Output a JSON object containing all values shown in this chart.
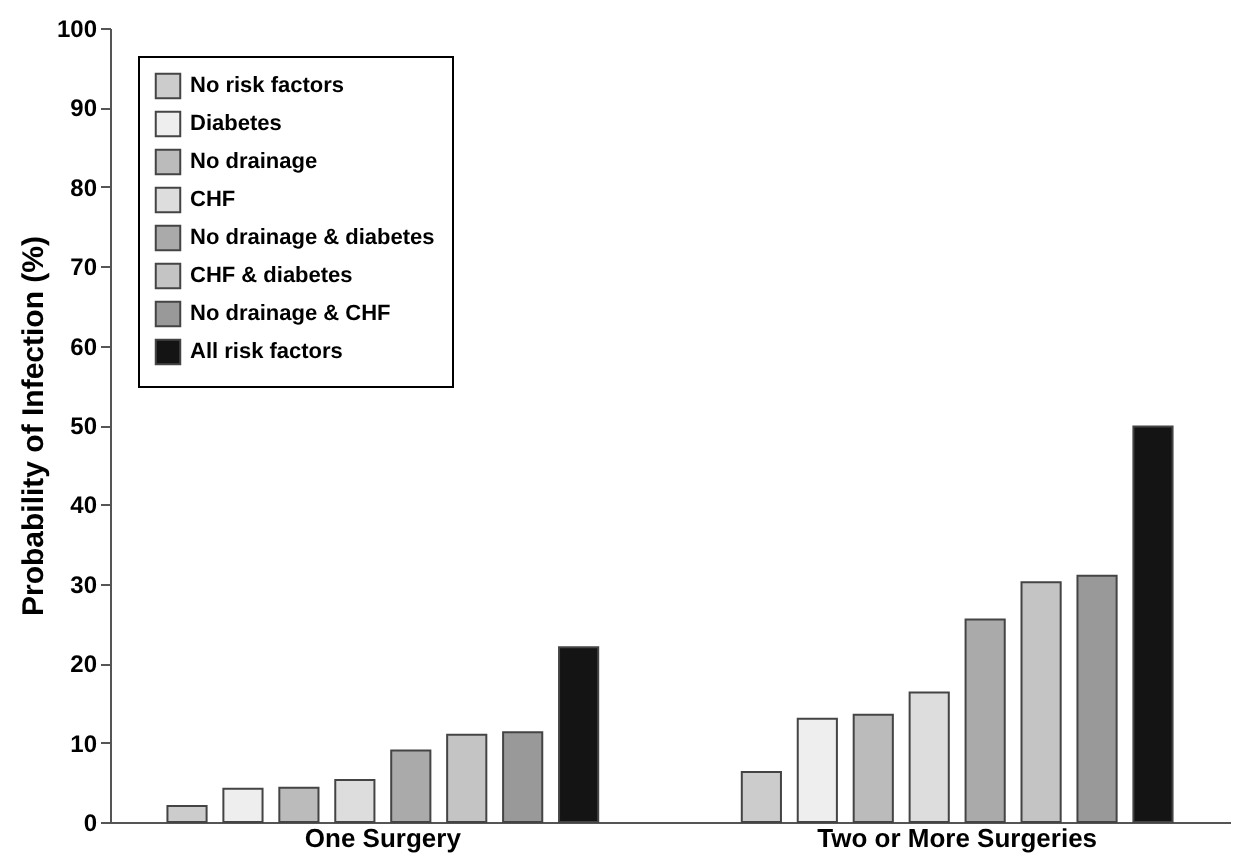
{
  "chart_data": {
    "type": "bar",
    "ylabel": "Probability of Infection (%)",
    "categories": [
      "One Surgery",
      "Two or More Surgeries"
    ],
    "series": [
      {
        "name": "No  risk factors",
        "color": "#cccccc",
        "values": [
          2,
          6.3
        ]
      },
      {
        "name": "Diabetes",
        "color": "#eeeeee",
        "values": [
          4.2,
          13
        ]
      },
      {
        "name": "No drainage",
        "color": "#bbbbbb",
        "values": [
          4.3,
          13.5
        ]
      },
      {
        "name": "CHF",
        "color": "#dddddd",
        "values": [
          5.3,
          16.3
        ]
      },
      {
        "name": "No drainage & diabetes",
        "color": "#aaaaaa",
        "values": [
          9,
          25.5
        ]
      },
      {
        "name": "CHF & diabetes",
        "color": "#c4c4c4",
        "values": [
          11,
          30.2
        ]
      },
      {
        "name": "No drainage & CHF",
        "color": "#999999",
        "values": [
          11.3,
          31
        ]
      },
      {
        "name": "All risk factors",
        "color": "#141414",
        "values": [
          22,
          49.8
        ]
      }
    ],
    "ylim": [
      0,
      100
    ],
    "yticks": [
      0,
      10,
      20,
      30,
      40,
      50,
      60,
      70,
      80,
      90,
      100
    ],
    "grid": false,
    "legend": "top left"
  }
}
